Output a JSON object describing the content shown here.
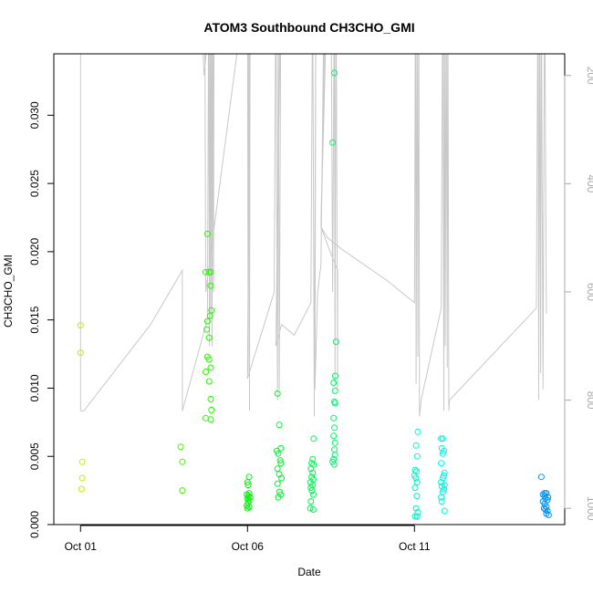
{
  "chart_data": {
    "type": "scatter",
    "title": "ATOM3 Southbound CH3CHO_GMI",
    "xlabel": "Date",
    "ylabel": "CH3CHO_GMI",
    "x_unit": "days since Oct 01",
    "xlim": [
      -0.8,
      14.5
    ],
    "ylim": [
      0.0,
      0.0345
    ],
    "x_ticks": [
      {
        "value": 0,
        "label": "Oct 01"
      },
      {
        "value": 5,
        "label": "Oct 06"
      },
      {
        "value": 10,
        "label": "Oct 11"
      }
    ],
    "y_ticks": [
      {
        "value": 0.0,
        "label": "0.000"
      },
      {
        "value": 0.005,
        "label": "0.005"
      },
      {
        "value": 0.01,
        "label": "0.010"
      },
      {
        "value": 0.015,
        "label": "0.015"
      },
      {
        "value": 0.02,
        "label": "0.020"
      },
      {
        "value": 0.025,
        "label": "0.025"
      },
      {
        "value": 0.03,
        "label": "0.030"
      }
    ],
    "right_axis": {
      "lim": [
        160,
        1030
      ],
      "inverted": true,
      "ticks": [
        {
          "value": 200,
          "label": "200"
        },
        {
          "value": 400,
          "label": "400"
        },
        {
          "value": 600,
          "label": "600"
        },
        {
          "value": 800,
          "label": "800"
        },
        {
          "value": 1000,
          "label": "1000"
        }
      ]
    },
    "scatter_points": [
      [
        0.0,
        0.0146
      ],
      [
        0.0,
        0.0126
      ],
      [
        0.05,
        0.0046
      ],
      [
        0.05,
        0.0034
      ],
      [
        0.03,
        0.0026
      ],
      [
        3.0,
        0.0057
      ],
      [
        3.05,
        0.0046
      ],
      [
        3.05,
        0.0025
      ],
      [
        3.8,
        0.0213
      ],
      [
        3.75,
        0.0185
      ],
      [
        3.85,
        0.0185
      ],
      [
        3.9,
        0.0185
      ],
      [
        3.9,
        0.0175
      ],
      [
        3.92,
        0.0157
      ],
      [
        3.88,
        0.0153
      ],
      [
        3.8,
        0.0149
      ],
      [
        3.78,
        0.0143
      ],
      [
        3.85,
        0.0137
      ],
      [
        3.8,
        0.0123
      ],
      [
        3.85,
        0.0121
      ],
      [
        3.9,
        0.0115
      ],
      [
        3.75,
        0.0112
      ],
      [
        3.85,
        0.0105
      ],
      [
        3.9,
        0.0092
      ],
      [
        3.92,
        0.0084
      ],
      [
        3.75,
        0.0078
      ],
      [
        3.9,
        0.0077
      ],
      [
        5.05,
        0.0035
      ],
      [
        5.0,
        0.0031
      ],
      [
        5.02,
        0.0029
      ],
      [
        5.05,
        0.0023
      ],
      [
        4.98,
        0.0022
      ],
      [
        5.03,
        0.0021
      ],
      [
        5.08,
        0.002
      ],
      [
        5.0,
        0.0019
      ],
      [
        5.05,
        0.0018
      ],
      [
        5.02,
        0.0016
      ],
      [
        4.98,
        0.0014
      ],
      [
        5.05,
        0.0013
      ],
      [
        5.0,
        0.0012
      ],
      [
        5.9,
        0.0096
      ],
      [
        5.95,
        0.0073
      ],
      [
        6.0,
        0.0056
      ],
      [
        5.88,
        0.0054
      ],
      [
        5.92,
        0.0052
      ],
      [
        5.98,
        0.0047
      ],
      [
        6.0,
        0.0045
      ],
      [
        5.9,
        0.0041
      ],
      [
        5.95,
        0.0037
      ],
      [
        6.02,
        0.0034
      ],
      [
        5.9,
        0.003
      ],
      [
        5.96,
        0.0024
      ],
      [
        6.0,
        0.0022
      ],
      [
        5.92,
        0.002
      ],
      [
        6.98,
        0.0063
      ],
      [
        6.95,
        0.0048
      ],
      [
        6.92,
        0.0045
      ],
      [
        6.98,
        0.0044
      ],
      [
        6.9,
        0.0041
      ],
      [
        6.95,
        0.0038
      ],
      [
        6.92,
        0.0035
      ],
      [
        6.97,
        0.0033
      ],
      [
        6.88,
        0.0031
      ],
      [
        6.95,
        0.0029
      ],
      [
        6.9,
        0.0027
      ],
      [
        6.93,
        0.0025
      ],
      [
        6.97,
        0.0022
      ],
      [
        6.9,
        0.0017
      ],
      [
        6.88,
        0.0012
      ],
      [
        6.97,
        0.0011
      ],
      [
        7.6,
        0.0331
      ],
      [
        7.55,
        0.028
      ],
      [
        7.65,
        0.0134
      ],
      [
        7.63,
        0.0109
      ],
      [
        7.58,
        0.0104
      ],
      [
        7.62,
        0.0098
      ],
      [
        7.6,
        0.009
      ],
      [
        7.62,
        0.0089
      ],
      [
        7.58,
        0.0078
      ],
      [
        7.6,
        0.0071
      ],
      [
        7.58,
        0.0065
      ],
      [
        7.62,
        0.006
      ],
      [
        7.6,
        0.0055
      ],
      [
        7.62,
        0.0051
      ],
      [
        7.58,
        0.0048
      ],
      [
        7.55,
        0.0046
      ],
      [
        7.6,
        0.0044
      ],
      [
        10.1,
        0.0068
      ],
      [
        10.05,
        0.0058
      ],
      [
        10.08,
        0.005
      ],
      [
        10.02,
        0.004
      ],
      [
        10.06,
        0.0039
      ],
      [
        10.0,
        0.0036
      ],
      [
        10.04,
        0.0034
      ],
      [
        10.08,
        0.0031
      ],
      [
        10.02,
        0.0027
      ],
      [
        10.07,
        0.0021
      ],
      [
        10.05,
        0.0012
      ],
      [
        10.1,
        0.0009
      ],
      [
        10.02,
        0.0006
      ],
      [
        10.08,
        0.0006
      ],
      [
        10.8,
        0.0063
      ],
      [
        10.85,
        0.0063
      ],
      [
        10.82,
        0.0056
      ],
      [
        10.88,
        0.0054
      ],
      [
        10.85,
        0.0052
      ],
      [
        10.8,
        0.0045
      ],
      [
        10.9,
        0.0038
      ],
      [
        10.88,
        0.0036
      ],
      [
        10.85,
        0.0034
      ],
      [
        10.8,
        0.0031
      ],
      [
        10.9,
        0.0029
      ],
      [
        10.82,
        0.0028
      ],
      [
        10.88,
        0.0026
      ],
      [
        10.85,
        0.0024
      ],
      [
        10.8,
        0.002
      ],
      [
        10.82,
        0.0017
      ],
      [
        10.9,
        0.001
      ],
      [
        13.8,
        0.0035
      ],
      [
        13.9,
        0.0023
      ],
      [
        13.95,
        0.0023
      ],
      [
        13.85,
        0.0022
      ],
      [
        13.9,
        0.0021
      ],
      [
        14.0,
        0.002
      ],
      [
        13.92,
        0.0019
      ],
      [
        13.98,
        0.0018
      ],
      [
        13.85,
        0.0017
      ],
      [
        13.9,
        0.0015
      ],
      [
        13.95,
        0.0013
      ],
      [
        13.88,
        0.0012
      ],
      [
        13.92,
        0.0011
      ],
      [
        13.98,
        0.001
      ],
      [
        13.95,
        0.0008
      ],
      [
        14.02,
        0.0007
      ]
    ],
    "altitude_line": [
      [
        0.0,
        10
      ],
      [
        0.0,
        820
      ],
      [
        0.1,
        820
      ],
      [
        2.1,
        660
      ],
      [
        3.05,
        560
      ],
      [
        3.05,
        820
      ],
      [
        3.8,
        650
      ],
      [
        3.84,
        10
      ],
      [
        3.86,
        700
      ],
      [
        3.88,
        10
      ],
      [
        3.9,
        650
      ],
      [
        3.92,
        10
      ],
      [
        3.94,
        700
      ],
      [
        3.96,
        10
      ],
      [
        3.98,
        600
      ],
      [
        4.0,
        10
      ],
      [
        3.7,
        200
      ],
      [
        3.58,
        10
      ],
      [
        3.72,
        10
      ],
      [
        3.75,
        600
      ],
      [
        5.0,
        10
      ],
      [
        5.02,
        750
      ],
      [
        5.04,
        10
      ],
      [
        5.06,
        820
      ],
      [
        5.08,
        10
      ],
      [
        5.0,
        760
      ],
      [
        5.3,
        700
      ],
      [
        5.8,
        600
      ],
      [
        5.85,
        10
      ],
      [
        5.9,
        800
      ],
      [
        5.92,
        10
      ],
      [
        5.95,
        780
      ],
      [
        6.0,
        10
      ],
      [
        5.85,
        700
      ],
      [
        6.02,
        660
      ],
      [
        6.4,
        680
      ],
      [
        6.9,
        620
      ],
      [
        6.95,
        10
      ],
      [
        7.0,
        830
      ],
      [
        7.05,
        10
      ],
      [
        7.02,
        780
      ],
      [
        7.1,
        600
      ],
      [
        7.2,
        550
      ],
      [
        7.3,
        10
      ],
      [
        7.35,
        10
      ],
      [
        7.2,
        480
      ],
      [
        7.4,
        10
      ],
      [
        7.5,
        10
      ],
      [
        7.55,
        600
      ],
      [
        7.6,
        10
      ],
      [
        7.62,
        770
      ],
      [
        7.65,
        10
      ],
      [
        7.7,
        780
      ],
      [
        7.7,
        560
      ],
      [
        7.5,
        530
      ],
      [
        7.2,
        480
      ],
      [
        7.4,
        500
      ],
      [
        7.8,
        520
      ],
      [
        9.2,
        580
      ],
      [
        10.0,
        620
      ],
      [
        10.03,
        10
      ],
      [
        10.05,
        770
      ],
      [
        10.08,
        10
      ],
      [
        10.1,
        720
      ],
      [
        10.13,
        10
      ],
      [
        10.15,
        830
      ],
      [
        10.2,
        800
      ],
      [
        10.8,
        630
      ],
      [
        10.85,
        10
      ],
      [
        10.88,
        820
      ],
      [
        10.9,
        10
      ],
      [
        10.92,
        700
      ],
      [
        10.95,
        10
      ],
      [
        10.98,
        740
      ],
      [
        11.0,
        10
      ],
      [
        11.03,
        820
      ],
      [
        11.05,
        800
      ],
      [
        13.65,
        630
      ],
      [
        13.7,
        10
      ],
      [
        13.72,
        800
      ],
      [
        13.75,
        10
      ],
      [
        13.78,
        750
      ],
      [
        13.8,
        10
      ],
      [
        13.85,
        780
      ],
      [
        13.9,
        10
      ],
      [
        13.95,
        640
      ]
    ]
  }
}
